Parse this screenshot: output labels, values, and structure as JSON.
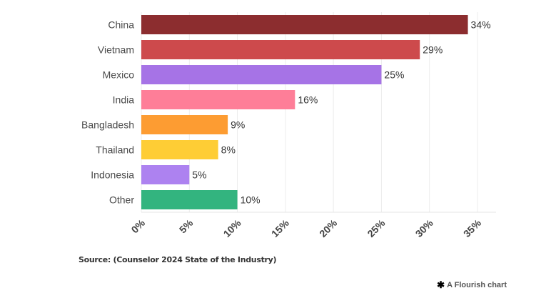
{
  "chart_data": {
    "type": "bar",
    "orientation": "horizontal",
    "title": "",
    "xlabel": "",
    "ylabel": "",
    "categories": [
      "China",
      "Vietnam",
      "Mexico",
      "India",
      "Bangladesh",
      "Thailand",
      "Indonesia",
      "Other"
    ],
    "values": [
      34,
      29,
      25,
      16,
      9,
      8,
      5,
      10
    ],
    "value_labels": [
      "34%",
      "29%",
      "25%",
      "16%",
      "9%",
      "8%",
      "5%",
      "10%"
    ],
    "colors": [
      "#8c2d2f",
      "#cd4a4c",
      "#a673e6",
      "#fe7e98",
      "#fd9c32",
      "#fecd35",
      "#ad82f0",
      "#33b47f"
    ],
    "xlim": [
      0,
      35
    ],
    "x_ticks": [
      0,
      5,
      10,
      15,
      20,
      25,
      30,
      35
    ],
    "x_tick_labels": [
      "0%",
      "5%",
      "10%",
      "15%",
      "20%",
      "25%",
      "30%",
      "35%"
    ],
    "grid": true,
    "legend": "none"
  },
  "footer": {
    "source": "Source: (Counselor 2024 State of the Industry)",
    "credit": "A Flourish chart",
    "credit_icon": "flourish-asterisk-icon"
  }
}
